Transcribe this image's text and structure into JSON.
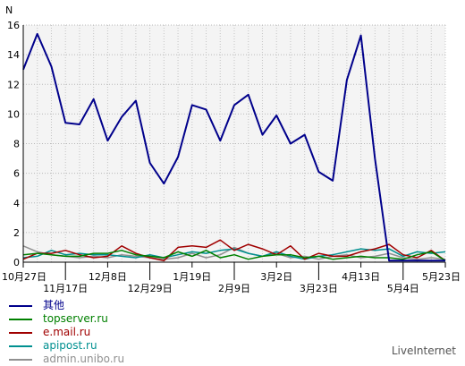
{
  "chart_data": {
    "type": "line",
    "ylabel": "N",
    "ylim": [
      0,
      16
    ],
    "yticks": [
      0,
      2,
      4,
      6,
      8,
      10,
      12,
      14,
      16
    ],
    "grid": true,
    "x_labels": [
      {
        "i": 0,
        "label": "10月27日",
        "row": 1
      },
      {
        "i": 3,
        "label": "11月17日",
        "row": 2
      },
      {
        "i": 6,
        "label": "12月8日",
        "row": 1
      },
      {
        "i": 9,
        "label": "12月29日",
        "row": 2
      },
      {
        "i": 12,
        "label": "1月19日",
        "row": 1
      },
      {
        "i": 15,
        "label": "2月9日",
        "row": 2
      },
      {
        "i": 18,
        "label": "3月2日",
        "row": 1
      },
      {
        "i": 21,
        "label": "3月23日",
        "row": 2
      },
      {
        "i": 24,
        "label": "4月13日",
        "row": 1
      },
      {
        "i": 27,
        "label": "5月4日",
        "row": 2
      },
      {
        "i": 30,
        "label": "5月23日",
        "row": 1
      }
    ],
    "series": [
      {
        "name": "其他",
        "color": "#00008b",
        "values": [
          13.0,
          15.4,
          13.2,
          9.4,
          9.3,
          11.0,
          8.2,
          9.8,
          10.9,
          6.7,
          5.3,
          7.1,
          10.6,
          10.3,
          8.2,
          10.6,
          11.3,
          8.6,
          9.9,
          8.0,
          8.6,
          6.1,
          5.5,
          12.3,
          15.3,
          7.0,
          0.1,
          0.1,
          0.1,
          0.1,
          0.1
        ]
      },
      {
        "name": "topserver.ru",
        "color": "#008000",
        "values": [
          0.5,
          0.6,
          0.5,
          0.4,
          0.4,
          0.6,
          0.6,
          0.8,
          0.5,
          0.4,
          0.3,
          0.7,
          0.4,
          0.8,
          0.3,
          0.5,
          0.2,
          0.4,
          0.5,
          0.5,
          0.3,
          0.4,
          0.2,
          0.3,
          0.4,
          0.3,
          0.3,
          0.2,
          0.5,
          0.7,
          0.1
        ]
      },
      {
        "name": "e.mail.ru",
        "color": "#a00000",
        "values": [
          0.2,
          0.6,
          0.6,
          0.8,
          0.5,
          0.3,
          0.4,
          1.1,
          0.6,
          0.3,
          0.1,
          1.0,
          1.1,
          1.0,
          1.5,
          0.8,
          1.2,
          0.9,
          0.5,
          1.1,
          0.2,
          0.6,
          0.4,
          0.4,
          0.7,
          0.9,
          1.2,
          0.5,
          0.3,
          0.8,
          0.1
        ]
      },
      {
        "name": "apipost.ru",
        "color": "#009090",
        "values": [
          0.3,
          0.4,
          0.8,
          0.5,
          0.6,
          0.5,
          0.5,
          0.4,
          0.3,
          0.5,
          0.3,
          0.5,
          0.7,
          0.6,
          0.8,
          0.9,
          0.6,
          0.4,
          0.7,
          0.4,
          0.2,
          0.4,
          0.5,
          0.7,
          0.9,
          0.8,
          0.9,
          0.4,
          0.7,
          0.6,
          0.7
        ]
      },
      {
        "name": "admin.unibo.ru",
        "color": "#909090",
        "values": [
          1.1,
          0.7,
          0.5,
          0.4,
          0.3,
          0.4,
          0.3,
          0.5,
          0.4,
          0.3,
          0.2,
          0.3,
          0.6,
          0.3,
          0.5,
          1.0,
          0.6,
          0.4,
          0.6,
          0.3,
          0.4,
          0.2,
          0.4,
          0.5,
          0.3,
          0.4,
          0.6,
          0.3,
          0.2,
          0.3,
          0.2
        ]
      }
    ]
  },
  "brand": "LiveInternet"
}
